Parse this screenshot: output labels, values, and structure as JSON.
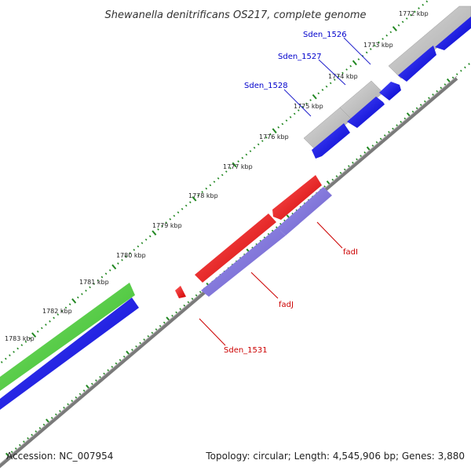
{
  "title": "Shewanella denitrificans OS217, complete genome",
  "footer": {
    "accession": "Accession: NC_007954",
    "summary": "Topology: circular; Length: 4,545,906 bp; Genes: 3,880"
  },
  "kbp_labels": [
    "1772 kbp",
    "1773 kbp",
    "1774 kbp",
    "1775 kbp",
    "1776 kbp",
    "1777 kbp",
    "1778 kbp",
    "1779 kbp",
    "1780 kbp",
    "1781 kbp",
    "1782 kbp",
    "1783 kbp"
  ],
  "gene_labels": [
    {
      "text": "Sden_1526",
      "color": "#0000cc"
    },
    {
      "text": "Sden_1527",
      "color": "#0000cc"
    },
    {
      "text": "Sden_1528",
      "color": "#0000cc"
    },
    {
      "text": "fadI",
      "color": "#cc0000"
    },
    {
      "text": "fadJ",
      "color": "#cc0000"
    },
    {
      "text": "Sden_1531",
      "color": "#cc0000"
    }
  ],
  "colors": {
    "backbone": "#808080",
    "tick": "#228822",
    "gene_forward_red": "#ee1111",
    "gene_blue": "#1111dd",
    "gene_gray": "#b8b8b8",
    "gene_purple": "#7b6fd6",
    "gene_green": "#44cc33"
  }
}
